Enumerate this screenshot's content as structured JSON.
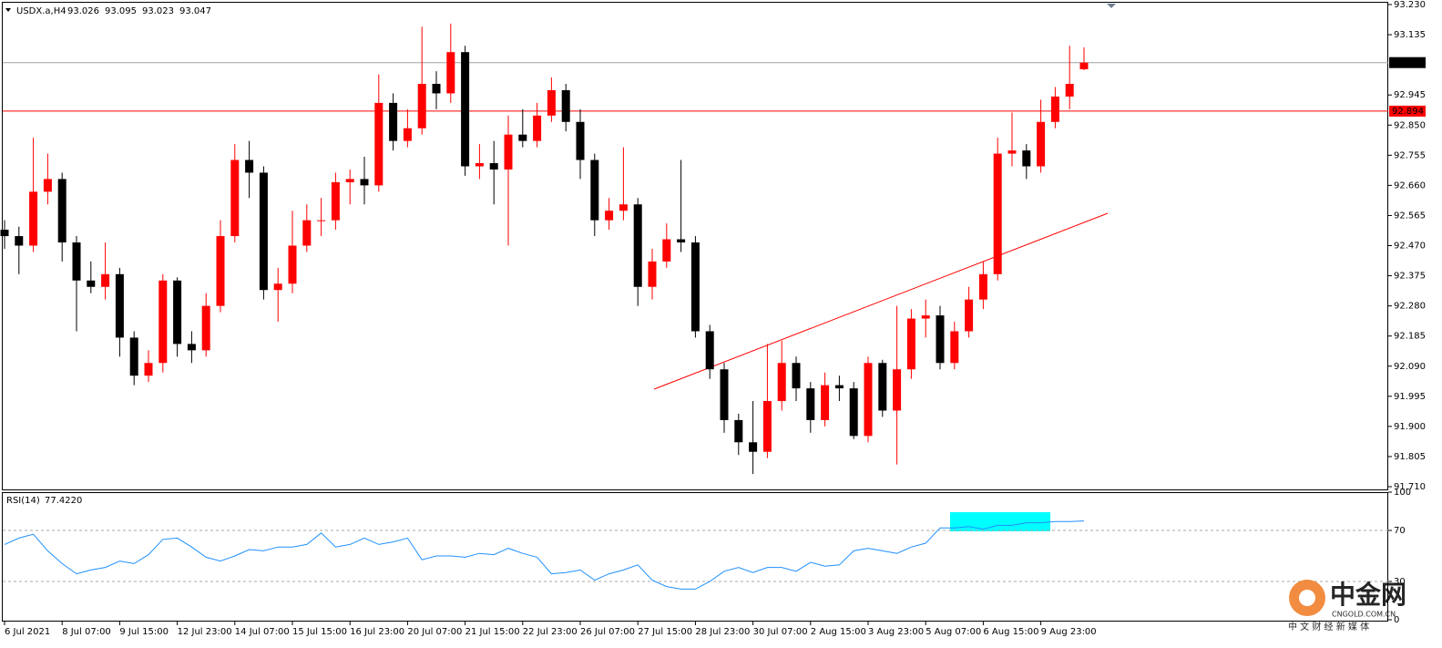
{
  "chart_data": {
    "type": "candlestick",
    "title": "USDX.a,H4",
    "bull_color": "#ff0000",
    "bear_color": "#000000",
    "categories": [
      "6 Jul 2021",
      null,
      null,
      null,
      "8 Jul 07:00",
      null,
      null,
      null,
      "9 Jul 15:00",
      null,
      null,
      null,
      "12 Jul 23:00",
      null,
      null,
      null,
      "14 Jul 07:00",
      null,
      null,
      null,
      "15 Jul 15:00",
      null,
      null,
      null,
      "16 Jul 23:00",
      null,
      null,
      null,
      "20 Jul 07:00",
      null,
      null,
      null,
      "21 Jul 15:00",
      null,
      null,
      null,
      "22 Jul 23:00",
      null,
      null,
      null,
      "26 Jul 07:00",
      null,
      null,
      null,
      "27 Jul 15:00",
      null,
      null,
      null,
      "28 Jul 23:00",
      null,
      null,
      null,
      "30 Jul 07:00",
      null,
      null,
      null,
      "2 Aug 15:00",
      null,
      null,
      null,
      "3 Aug 23:00",
      null,
      null,
      null,
      "5 Aug 07:00",
      null,
      null,
      null,
      "6 Aug 15:00",
      null,
      null,
      null,
      "9 Aug 23:00",
      null,
      null,
      null
    ],
    "ohlc": [
      [
        92.52,
        92.55,
        92.46,
        92.5
      ],
      [
        92.5,
        92.53,
        92.38,
        92.47
      ],
      [
        92.47,
        92.81,
        92.45,
        92.64
      ],
      [
        92.64,
        92.76,
        92.6,
        92.68
      ],
      [
        92.68,
        92.7,
        92.42,
        92.48
      ],
      [
        92.48,
        92.5,
        92.2,
        92.36
      ],
      [
        92.36,
        92.42,
        92.32,
        92.34
      ],
      [
        92.34,
        92.48,
        92.3,
        92.38
      ],
      [
        92.38,
        92.4,
        92.12,
        92.18
      ],
      [
        92.18,
        92.2,
        92.03,
        92.06
      ],
      [
        92.06,
        92.14,
        92.04,
        92.1
      ],
      [
        92.1,
        92.38,
        92.07,
        92.36
      ],
      [
        92.36,
        92.37,
        92.12,
        92.16
      ],
      [
        92.16,
        92.2,
        92.1,
        92.14
      ],
      [
        92.14,
        92.32,
        92.12,
        92.28
      ],
      [
        92.28,
        92.55,
        92.26,
        92.5
      ],
      [
        92.5,
        92.79,
        92.48,
        92.74
      ],
      [
        92.74,
        92.8,
        92.62,
        92.7
      ],
      [
        92.7,
        92.72,
        92.3,
        92.33
      ],
      [
        92.33,
        92.4,
        92.23,
        92.35
      ],
      [
        92.35,
        92.58,
        92.32,
        92.47
      ],
      [
        92.47,
        92.6,
        92.45,
        92.55
      ],
      [
        92.55,
        92.62,
        92.5,
        92.55
      ],
      [
        92.55,
        92.7,
        92.52,
        92.67
      ],
      [
        92.67,
        92.71,
        92.6,
        92.68
      ],
      [
        92.68,
        92.75,
        92.6,
        92.66
      ],
      [
        92.66,
        93.01,
        92.64,
        92.92
      ],
      [
        92.92,
        92.95,
        92.77,
        92.8
      ],
      [
        92.8,
        92.9,
        92.78,
        92.84
      ],
      [
        92.84,
        93.16,
        92.82,
        92.98
      ],
      [
        92.98,
        93.02,
        92.9,
        92.95
      ],
      [
        92.95,
        93.17,
        92.92,
        93.08
      ],
      [
        93.08,
        93.1,
        92.69,
        92.72
      ],
      [
        92.72,
        92.79,
        92.68,
        92.73
      ],
      [
        92.73,
        92.8,
        92.6,
        92.71
      ],
      [
        92.71,
        92.88,
        92.47,
        92.82
      ],
      [
        92.82,
        92.9,
        92.78,
        92.8
      ],
      [
        92.8,
        92.92,
        92.78,
        92.88
      ],
      [
        92.88,
        93.0,
        92.86,
        92.96
      ],
      [
        92.96,
        92.98,
        92.83,
        92.86
      ],
      [
        92.86,
        92.9,
        92.68,
        92.74
      ],
      [
        92.74,
        92.76,
        92.5,
        92.55
      ],
      [
        92.55,
        92.62,
        92.52,
        92.58
      ],
      [
        92.58,
        92.78,
        92.55,
        92.6
      ],
      [
        92.6,
        92.62,
        92.28,
        92.34
      ],
      [
        92.34,
        92.46,
        92.3,
        92.42
      ],
      [
        92.42,
        92.54,
        92.4,
        92.49
      ],
      [
        92.49,
        92.74,
        92.45,
        92.48
      ],
      [
        92.48,
        92.5,
        92.18,
        92.2
      ],
      [
        92.2,
        92.22,
        92.05,
        92.08
      ],
      [
        92.08,
        92.1,
        91.88,
        91.92
      ],
      [
        91.92,
        91.94,
        91.81,
        91.85
      ],
      [
        91.85,
        91.98,
        91.75,
        91.82
      ],
      [
        91.82,
        92.16,
        91.8,
        91.98
      ],
      [
        91.98,
        92.17,
        91.95,
        92.1
      ],
      [
        92.1,
        92.12,
        91.98,
        92.02
      ],
      [
        92.02,
        92.04,
        91.88,
        91.92
      ],
      [
        91.92,
        92.07,
        91.9,
        92.03
      ],
      [
        92.03,
        92.06,
        91.98,
        92.02
      ],
      [
        92.02,
        92.04,
        91.86,
        91.87
      ],
      [
        91.87,
        92.12,
        91.85,
        92.1
      ],
      [
        92.1,
        92.11,
        91.93,
        91.95
      ],
      [
        91.95,
        92.28,
        91.78,
        92.08
      ],
      [
        92.08,
        92.27,
        92.05,
        92.24
      ],
      [
        92.24,
        92.3,
        92.18,
        92.25
      ],
      [
        92.25,
        92.28,
        92.08,
        92.1
      ],
      [
        92.1,
        92.23,
        92.08,
        92.2
      ],
      [
        92.2,
        92.34,
        92.18,
        92.3
      ],
      [
        92.3,
        92.42,
        92.27,
        92.38
      ],
      [
        92.38,
        92.81,
        92.36,
        92.76
      ],
      [
        92.76,
        92.89,
        92.72,
        92.77
      ],
      [
        92.77,
        92.79,
        92.68,
        92.72
      ],
      [
        92.72,
        92.93,
        92.7,
        92.86
      ],
      [
        92.86,
        92.97,
        92.84,
        92.94
      ],
      [
        92.94,
        93.1,
        92.9,
        92.98
      ],
      [
        93.026,
        93.095,
        93.023,
        93.047
      ]
    ],
    "ylim": [
      91.71,
      93.23
    ],
    "yticks": [
      {
        "value": 93.23,
        "label": "93.230"
      },
      93.135,
      92.945,
      {
        "value": 92.85,
        "label": "92.850"
      },
      92.755,
      {
        "value": 92.66,
        "label": "92.660"
      },
      92.565,
      {
        "value": 92.47,
        "label": "92.470"
      },
      92.375,
      {
        "value": 92.28,
        "label": "92.280"
      },
      92.185,
      {
        "value": 92.09,
        "label": "92.090"
      },
      91.995,
      {
        "value": 91.9,
        "label": "91.900"
      },
      91.805,
      {
        "value": 91.71,
        "label": "91.710"
      }
    ],
    "hline": {
      "value": 92.894,
      "color": "#ff0000"
    },
    "indicator": {
      "name": "RSI(14)",
      "current_label": "77.4220",
      "color": "#1e90ff",
      "values": [
        59,
        64,
        67,
        54,
        44,
        36,
        39,
        41,
        46,
        44,
        51,
        63,
        64,
        57,
        49,
        46,
        50,
        55,
        54,
        57,
        57,
        59,
        68,
        57,
        59,
        64,
        59,
        61,
        64,
        47,
        50,
        50,
        49,
        52,
        51,
        56,
        52,
        49,
        36,
        37,
        39,
        31,
        36,
        39,
        43,
        31,
        26,
        24,
        24,
        30,
        38,
        41,
        37,
        41,
        41,
        38,
        45,
        42,
        43,
        54,
        56,
        54,
        52,
        57,
        60,
        72,
        72,
        73,
        71,
        74,
        74,
        76,
        76,
        77,
        77,
        77.422
      ],
      "ylim": [
        0,
        100
      ],
      "yticks": [
        100,
        70,
        30,
        0
      ],
      "levels": [
        70,
        30
      ]
    }
  },
  "watermark": {
    "name": "中金网",
    "site": "CNGOLD.COM.CN",
    "tagline": "中 文 财 经 新 媒 体"
  }
}
